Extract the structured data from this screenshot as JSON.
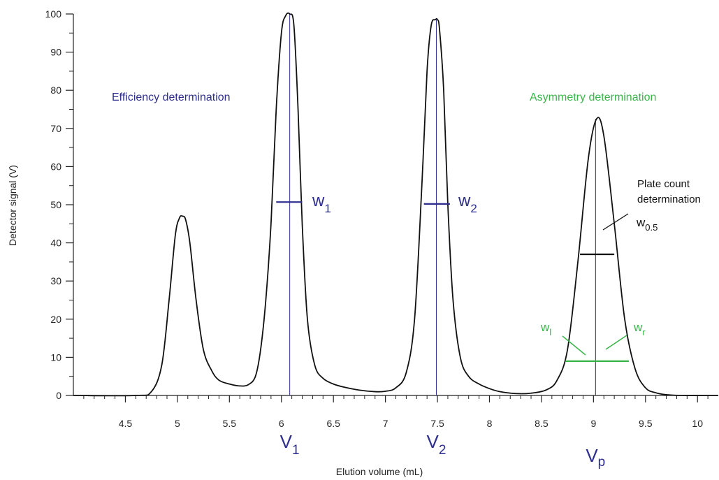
{
  "colors": {
    "trace": "#111111",
    "efficiency": "#2e2e8f",
    "asymmetry": "#3ab54a",
    "plate": "#111111",
    "axis": "#222222"
  },
  "chart_data": {
    "type": "line",
    "title": "",
    "xlabel": "Elution volume (mL)",
    "ylabel": "Detector signal (V)",
    "xlim": [
      4.0,
      10.2
    ],
    "ylim": [
      0,
      100
    ],
    "xticks": [
      4.5,
      5,
      5.5,
      6,
      6.5,
      7,
      7.5,
      8,
      8.5,
      9,
      9.5,
      10
    ],
    "xtick_labels": [
      "4.5",
      "5",
      "5.5",
      "6",
      "6.5",
      "7",
      "7.5",
      "8",
      "8.5",
      "9",
      "9.5",
      "10"
    ],
    "yticks": [
      0,
      10,
      20,
      30,
      40,
      50,
      60,
      70,
      80,
      90,
      100
    ],
    "ytick_labels": [
      "0",
      "10",
      "20",
      "30",
      "40",
      "50",
      "60",
      "70",
      "80",
      "90",
      "100"
    ],
    "grid": false,
    "series": [
      {
        "x": [
          4.0,
          4.6,
          4.75,
          4.85,
          4.92,
          4.98,
          5.02,
          5.05,
          5.08,
          5.12,
          5.18,
          5.25,
          5.33,
          5.4,
          5.5,
          5.6,
          5.68,
          5.75,
          5.8,
          5.85,
          5.9,
          5.95,
          6.0,
          6.04,
          6.08,
          6.12,
          6.16,
          6.2,
          6.25,
          6.32,
          6.4,
          6.5,
          6.6,
          6.75,
          6.9,
          7.0,
          7.1,
          7.2,
          7.28,
          7.35,
          7.4,
          7.44,
          7.48,
          7.5,
          7.52,
          7.56,
          7.6,
          7.65,
          7.72,
          7.8,
          7.9,
          8.0,
          8.1,
          8.25,
          8.4,
          8.55,
          8.65,
          8.75,
          8.85,
          8.95,
          9.03,
          9.1,
          9.2,
          9.3,
          9.4,
          9.5,
          9.6,
          9.7,
          9.85,
          10.2
        ],
        "y": [
          0,
          0,
          1,
          8,
          25,
          42,
          46.5,
          47,
          46,
          40,
          25,
          12,
          6.5,
          4,
          3,
          2.5,
          2.8,
          5,
          12,
          25,
          45,
          75,
          95,
          99.5,
          100,
          97,
          75,
          45,
          20,
          8,
          4.5,
          3,
          2.2,
          1.4,
          1.0,
          1.1,
          2,
          6,
          20,
          55,
          85,
          97,
          98.5,
          98.5,
          96,
          80,
          50,
          25,
          10,
          5,
          3,
          1.8,
          1.0,
          0.5,
          0.6,
          1.5,
          4,
          12,
          35,
          62,
          72.5,
          68,
          45,
          20,
          7,
          2,
          0.7,
          0.2,
          0,
          0
        ]
      }
    ],
    "annotations": {
      "efficiency_title": "Efficiency determination",
      "asymmetry_title": "Asymmetry determination",
      "plate_title_line1": "Plate count",
      "plate_title_line2": "determination",
      "v1": {
        "main": "V",
        "sub": "1",
        "x": 6.08
      },
      "v2": {
        "main": "V",
        "sub": "2",
        "x": 7.49
      },
      "vp": {
        "main": "V",
        "sub": "p",
        "x": 9.02
      },
      "w1": {
        "main": "w",
        "sub": "1",
        "x1": 5.95,
        "x2": 6.2,
        "y": 50.7
      },
      "w2": {
        "main": "w",
        "sub": "2",
        "x1": 7.37,
        "x2": 7.62,
        "y": 50.2
      },
      "w05": {
        "main": "w",
        "sub": "0.5",
        "x1": 8.87,
        "x2": 9.2,
        "y": 37
      },
      "wl": {
        "main": "w",
        "sub": "l"
      },
      "wr": {
        "main": "w",
        "sub": "r"
      },
      "asym_line": {
        "x1": 8.73,
        "x2": 9.34,
        "y": 9
      }
    }
  }
}
